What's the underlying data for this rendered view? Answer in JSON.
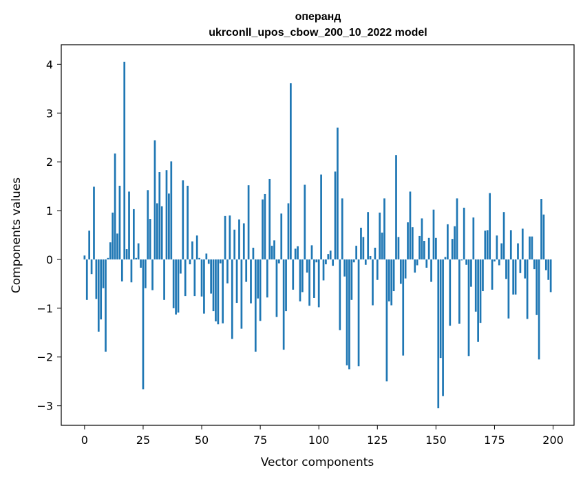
{
  "chart_data": {
    "type": "bar",
    "title": "операнд",
    "subtitle": "ukrconll_upos_cbow_200_10_2022 model",
    "xlabel": "Vector components",
    "ylabel": "Components values",
    "xlim": [
      -9.95,
      208.95
    ],
    "ylim": [
      -3.4,
      4.4
    ],
    "xticks": [
      0,
      25,
      50,
      75,
      100,
      125,
      150,
      175,
      200
    ],
    "xtick_labels": [
      "0",
      "25",
      "50",
      "75",
      "100",
      "125",
      "150",
      "175",
      "200"
    ],
    "yticks": [
      -3,
      -2,
      -1,
      0,
      1,
      2,
      3,
      4
    ],
    "ytick_labels": [
      "−3",
      "−2",
      "−1",
      "0",
      "1",
      "2",
      "3",
      "4"
    ],
    "grid": false,
    "legend": "none",
    "bar_color": "#1f77b4",
    "series": [
      {
        "values": [
          0.08,
          -0.83,
          0.59,
          -0.3,
          1.49,
          -0.81,
          -1.48,
          -1.23,
          -0.59,
          -1.89,
          0.03,
          0.35,
          0.96,
          2.17,
          0.53,
          1.51,
          -0.45,
          4.05,
          0.21,
          1.39,
          -0.47,
          1.03,
          0.03,
          0.33,
          -0.17,
          -2.66,
          -0.59,
          1.42,
          0.83,
          -0.63,
          2.44,
          1.15,
          1.79,
          1.09,
          -0.83,
          1.83,
          1.35,
          2.01,
          -1.0,
          -1.13,
          -1.09,
          -0.29,
          1.62,
          -0.75,
          1.51,
          -0.1,
          0.37,
          -0.75,
          0.49,
          0.03,
          -0.76,
          -1.11,
          0.12,
          -0.09,
          -0.7,
          -1.06,
          -1.27,
          -1.33,
          -0.08,
          -1.31,
          0.89,
          -0.49,
          0.9,
          -1.63,
          0.61,
          -0.89,
          0.82,
          -1.42,
          0.74,
          -0.46,
          1.52,
          -0.9,
          0.24,
          -1.89,
          -0.8,
          -1.26,
          1.23,
          1.34,
          -0.78,
          1.65,
          0.28,
          0.39,
          -1.18,
          -0.08,
          0.94,
          -1.85,
          -1.06,
          1.15,
          3.61,
          -0.62,
          0.22,
          0.27,
          -0.86,
          -0.67,
          1.53,
          -0.27,
          -0.95,
          0.29,
          -0.79,
          -0.06,
          -0.98,
          1.74,
          -0.43,
          -0.1,
          0.11,
          0.18,
          -0.13,
          1.8,
          2.7,
          -1.45,
          1.25,
          -0.35,
          -2.17,
          -2.25,
          -0.83,
          -0.06,
          0.28,
          -2.19,
          0.65,
          0.46,
          -0.11,
          0.97,
          0.07,
          -0.94,
          0.24,
          -0.42,
          0.96,
          0.55,
          1.25,
          -2.5,
          -0.86,
          -0.94,
          -0.65,
          2.14,
          0.46,
          -0.5,
          -1.97,
          -0.39,
          0.76,
          1.39,
          0.66,
          -0.27,
          -0.12,
          0.48,
          0.84,
          0.38,
          -0.17,
          0.44,
          -0.46,
          1.02,
          0.44,
          -3.05,
          -2.02,
          -2.8,
          0.05,
          0.72,
          -1.36,
          0.42,
          0.68,
          1.25,
          -1.32,
          -0.02,
          1.06,
          -0.11,
          -1.98,
          -0.56,
          0.86,
          -1.07,
          -1.69,
          -1.3,
          -0.65,
          0.59,
          0.6,
          1.36,
          -0.62,
          -0.04,
          0.49,
          -0.12,
          0.33,
          0.97,
          -0.4,
          -1.21,
          0.6,
          -0.72,
          -0.72,
          0.33,
          -0.28,
          0.63,
          -0.39,
          -1.22,
          0.47,
          0.47,
          -0.2,
          -1.14,
          -2.05,
          1.24,
          0.92,
          -0.22,
          -0.42,
          -0.67
        ]
      }
    ]
  }
}
